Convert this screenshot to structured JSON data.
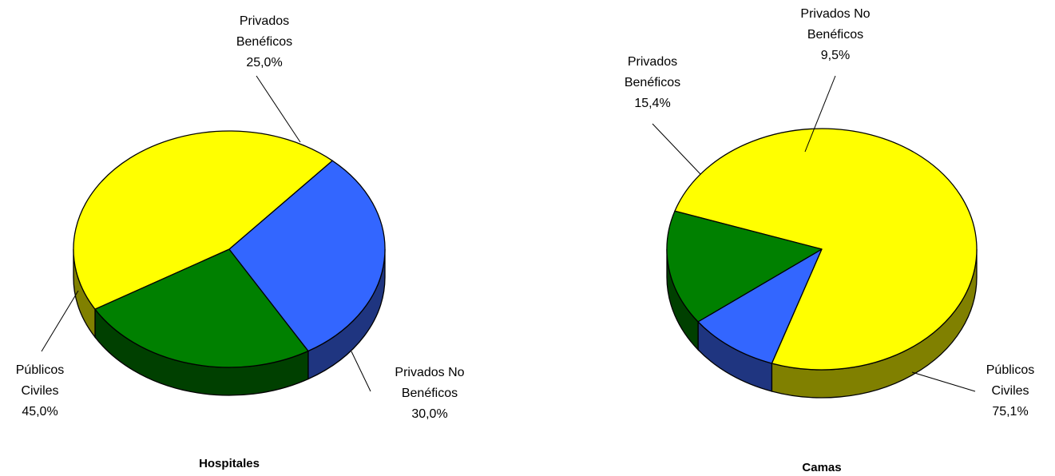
{
  "chart_data": [
    {
      "type": "pie",
      "title": "Hospitales",
      "slices": [
        {
          "label": [
            "Privados",
            "Benéficos"
          ],
          "value": 25.0,
          "value_label": "25,0%",
          "color": "#008000",
          "side_color": "#004000"
        },
        {
          "label": [
            "Privados No",
            "Benéficos"
          ],
          "value": 30.0,
          "value_label": "30,0%",
          "color": "#3366FF",
          "side_color": "#1F3580"
        },
        {
          "label": [
            "Públicos",
            "Civiles"
          ],
          "value": 45.0,
          "value_label": "45,0%",
          "color": "#FFFF00",
          "side_color": "#808000"
        }
      ]
    },
    {
      "type": "pie",
      "title": "Camas",
      "slices": [
        {
          "label": [
            "Privados No",
            "Benéficos"
          ],
          "value": 9.5,
          "value_label": "9,5%",
          "color": "#3366FF",
          "side_color": "#1F3580"
        },
        {
          "label": [
            "Públicos",
            "Civiles"
          ],
          "value": 75.1,
          "value_label": "75,1%",
          "color": "#FFFF00",
          "side_color": "#808000"
        },
        {
          "label": [
            "Privados",
            "Benéficos"
          ],
          "value": 15.4,
          "value_label": "15,4%",
          "color": "#008000",
          "side_color": "#004000"
        }
      ]
    }
  ]
}
